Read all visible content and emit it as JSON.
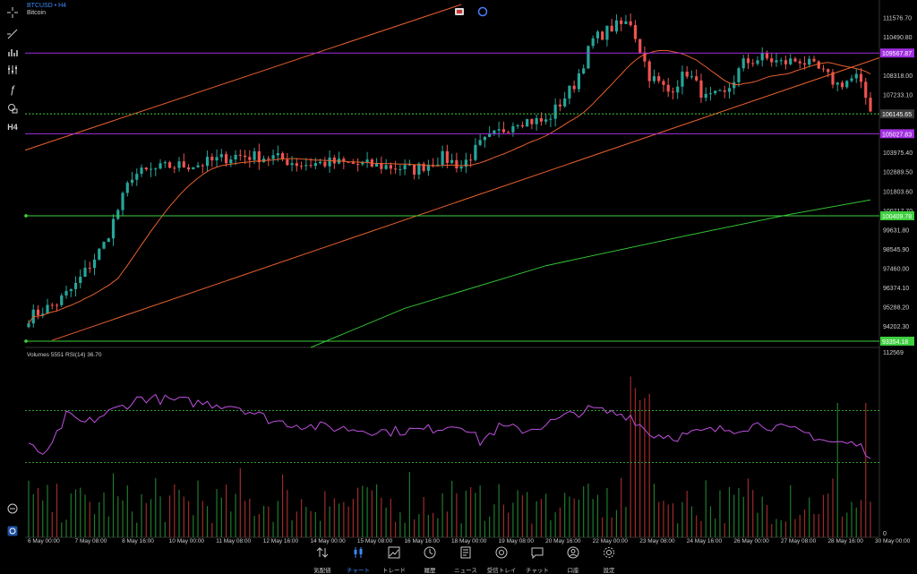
{
  "header": {
    "symbol": "BTCUSD • H4",
    "name": "Bitcoin",
    "timeframe": "H4"
  },
  "indicator_label": "Volumes 5551 RSI(14) 36.70",
  "price_axis": {
    "ticks": [
      "111576.70",
      "110490.80",
      "108318.00",
      "107233.10",
      "103975.40",
      "102889.50",
      "101803.60",
      "100717.70",
      "99631.80",
      "98545.90",
      "97460.00",
      "96374.10",
      "95288.20",
      "94202.30"
    ],
    "ymin": 93000,
    "ymax": 112300
  },
  "price_tags": [
    {
      "label": "109567.87",
      "value": 109567.87,
      "color": "#a12ee0"
    },
    {
      "label": "106145.65",
      "value": 106145.65,
      "color": "#3a3a3a"
    },
    {
      "label": "105027.83",
      "value": 105027.83,
      "color": "#a12ee0"
    },
    {
      "label": "100409.78",
      "value": 100409.78,
      "color": "#3ecf3e"
    },
    {
      "label": "93354.18",
      "value": 93354.18,
      "color": "#3ecf3e"
    }
  ],
  "volume_axis": {
    "top_label": "112569",
    "bottom_label": "0"
  },
  "time_axis": [
    "6 May 00:00",
    "7 May 08:00",
    "8 May 16:00",
    "10 May 00:00",
    "11 May 08:00",
    "12 May 16:00",
    "14 May 00:00",
    "15 May 08:00",
    "16 May 16:00",
    "18 May 00:00",
    "19 May 08:00",
    "20 May 16:00",
    "22 May 00:00",
    "23 May 08:00",
    "24 May 16:00",
    "26 May 00:00",
    "27 May 08:00",
    "28 May 16:00",
    "30 May 00:00"
  ],
  "chart_data": {
    "type": "candlestick",
    "series_count": 150,
    "ma_fast": "orange moving average",
    "ma_slow": "green moving average",
    "rsi_period": 14,
    "rsi_current": 36.7,
    "levels": [
      109567.87,
      105027.83,
      100409.78,
      93354.18
    ]
  },
  "bottom_nav": [
    {
      "label": "気配値",
      "icon": "arrows"
    },
    {
      "label": "チャート",
      "icon": "candles",
      "active": true
    },
    {
      "label": "トレード",
      "icon": "trend"
    },
    {
      "label": "履歴",
      "icon": "clock"
    },
    {
      "label": "ニュース",
      "icon": "doc"
    },
    {
      "label": "受信トレイ",
      "icon": "at"
    },
    {
      "label": "チャット",
      "icon": "chat"
    },
    {
      "label": "口座",
      "icon": "user"
    },
    {
      "label": "設定",
      "icon": "gear"
    }
  ],
  "colors": {
    "bull": "#26a69a",
    "bear": "#ef5350",
    "rsi": "#c050e0",
    "ma_fast": "#e8602c",
    "ma_slow": "#33c233",
    "grid_level_green": "#3ecf3e",
    "purple_line": "#a12ee0"
  }
}
